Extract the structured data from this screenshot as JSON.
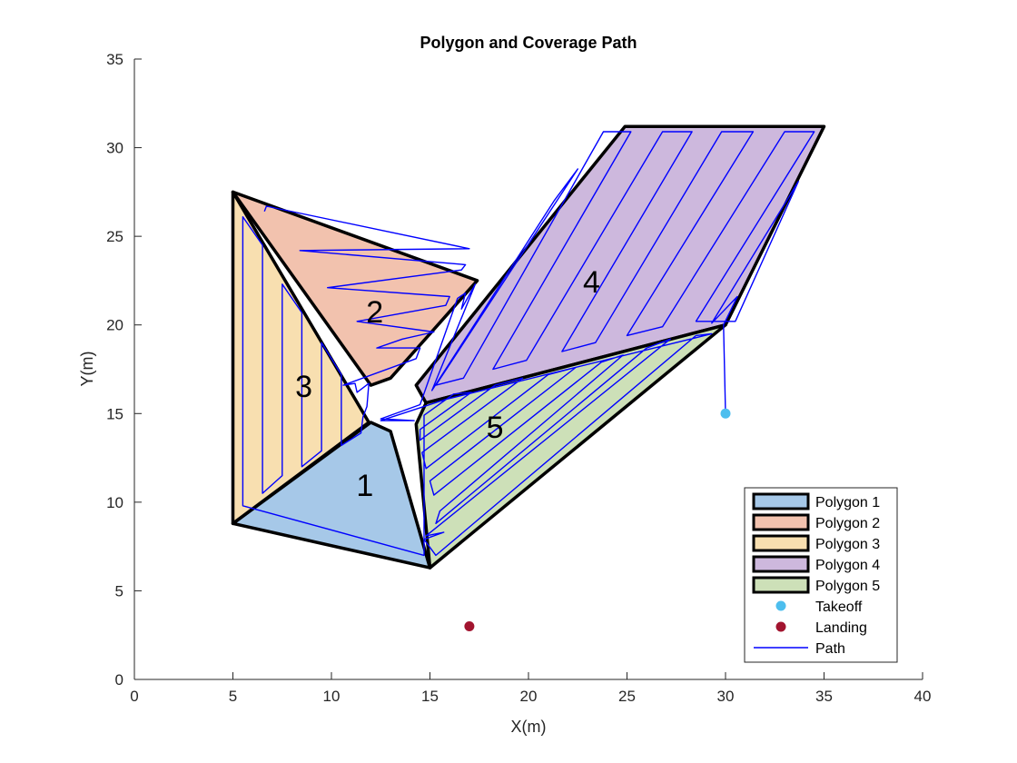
{
  "chart_data": {
    "type": "area",
    "title": "Polygon and Coverage Path",
    "xlabel": "X(m)",
    "ylabel": "Y(m)",
    "xlim": [
      0,
      40
    ],
    "ylim": [
      0,
      35
    ],
    "xticks": [
      0,
      5,
      10,
      15,
      20,
      25,
      30,
      35,
      40
    ],
    "yticks": [
      0,
      5,
      10,
      15,
      20,
      25,
      30,
      35
    ],
    "grid": false,
    "legend_position": "bottom-right",
    "polygons": [
      {
        "name": "Polygon 1",
        "label": "1",
        "color": "#a6c8e8",
        "label_at": [
          11.7,
          10.8
        ],
        "vertices": [
          [
            5,
            8.8
          ],
          [
            12,
            14.5
          ],
          [
            13,
            14
          ],
          [
            15,
            6.3
          ]
        ]
      },
      {
        "name": "Polygon 2",
        "label": "2",
        "color": "#f2c2ae",
        "label_at": [
          12.2,
          20.6
        ],
        "vertices": [
          [
            5,
            27.5
          ],
          [
            17.4,
            22.5
          ],
          [
            13,
            17
          ],
          [
            12,
            16.6
          ]
        ]
      },
      {
        "name": "Polygon 3",
        "label": "3",
        "color": "#f8dfb0",
        "label_at": [
          8.6,
          16.4
        ],
        "vertices": [
          [
            5,
            27.5
          ],
          [
            11.9,
            14.5
          ],
          [
            5,
            8.8
          ]
        ]
      },
      {
        "name": "Polygon 4",
        "label": "4",
        "color": "#cdb8dd",
        "label_at": [
          23.2,
          22.3
        ],
        "vertices": [
          [
            24.9,
            31.2
          ],
          [
            35,
            31.2
          ],
          [
            30,
            20
          ],
          [
            14.8,
            15.6
          ],
          [
            14.3,
            16.6
          ]
        ]
      },
      {
        "name": "Polygon 5",
        "label": "5",
        "color": "#cde0b8",
        "label_at": [
          18.3,
          14.1
        ],
        "vertices": [
          [
            14.8,
            15.6
          ],
          [
            30,
            20
          ],
          [
            15,
            6.3
          ],
          [
            14.3,
            14.4
          ]
        ]
      }
    ],
    "takeoff": {
      "name": "Takeoff",
      "x": 30,
      "y": 15,
      "color": "#4dbeee"
    },
    "landing": {
      "name": "Landing",
      "x": 17,
      "y": 3,
      "color": "#a2142f"
    },
    "path": {
      "name": "Path",
      "color": "#0000ff",
      "points": [
        [
          30,
          15
        ],
        [
          29.9,
          20
        ],
        [
          30.6,
          21.6
        ],
        [
          29.3,
          20.1
        ],
        [
          33.7,
          28.1
        ],
        [
          30.5,
          20.2
        ],
        [
          28.5,
          20.2
        ],
        [
          34.5,
          30.9
        ],
        [
          33,
          30.9
        ],
        [
          26.8,
          19.9
        ],
        [
          25,
          19.4
        ],
        [
          31.4,
          30.9
        ],
        [
          29.8,
          30.9
        ],
        [
          23.4,
          19
        ],
        [
          21.7,
          18.5
        ],
        [
          28.3,
          30.9
        ],
        [
          26.8,
          30.9
        ],
        [
          19.9,
          18
        ],
        [
          18.2,
          17.5
        ],
        [
          25.2,
          30.9
        ],
        [
          23.8,
          30.9
        ],
        [
          16.7,
          17
        ],
        [
          15.3,
          16.6
        ],
        [
          22.5,
          28.8
        ],
        [
          21.3,
          27
        ],
        [
          15.1,
          16.3
        ],
        [
          17.3,
          22.3
        ],
        [
          16.6,
          20.9
        ],
        [
          16.8,
          21.8
        ],
        [
          16.4,
          21.5
        ],
        [
          14.5,
          15.5
        ],
        [
          12.5,
          14.7
        ],
        [
          14.2,
          14.6
        ],
        [
          12.5,
          14.6
        ],
        [
          15.8,
          15.8
        ],
        [
          29.3,
          19.5
        ],
        [
          28.5,
          19.4
        ],
        [
          15.3,
          7
        ],
        [
          14.7,
          7.9
        ],
        [
          15.7,
          8.3
        ],
        [
          14.8,
          8.1
        ],
        [
          27.2,
          19.2
        ],
        [
          26,
          18.7
        ],
        [
          15.3,
          8.8
        ],
        [
          15.5,
          9.5
        ],
        [
          24.8,
          18.3
        ],
        [
          23.7,
          17.9
        ],
        [
          15.2,
          10.4
        ],
        [
          15,
          11.2
        ],
        [
          22.4,
          17.6
        ],
        [
          21,
          17.2
        ],
        [
          14.8,
          11.9
        ],
        [
          14.6,
          12.8
        ],
        [
          19.7,
          17
        ],
        [
          18.3,
          16.6
        ],
        [
          14.5,
          13.5
        ],
        [
          14.5,
          14.1
        ],
        [
          17.1,
          16.2
        ],
        [
          16.2,
          16.1
        ],
        [
          14.7,
          14.9
        ],
        [
          14.7,
          7
        ],
        [
          5.5,
          9.8
        ],
        [
          5.5,
          26.1
        ],
        [
          6.5,
          24.5
        ],
        [
          6.5,
          10.5
        ],
        [
          7.5,
          11.5
        ],
        [
          7.5,
          22.3
        ],
        [
          8.5,
          20.7
        ],
        [
          8.5,
          12
        ],
        [
          9.5,
          12.9
        ],
        [
          9.5,
          19
        ],
        [
          10.5,
          17.2
        ],
        [
          10.5,
          13.2
        ],
        [
          11.5,
          13.9
        ],
        [
          11.6,
          14.8
        ],
        [
          11.8,
          15.4
        ],
        [
          11.9,
          16.7
        ],
        [
          11.3,
          16.2
        ],
        [
          11.2,
          16.7
        ],
        [
          10.6,
          16.6
        ],
        [
          14.3,
          18.1
        ],
        [
          14.5,
          18.7
        ],
        [
          12.3,
          18.7
        ],
        [
          13.6,
          19.2
        ],
        [
          15.2,
          19.6
        ],
        [
          11.3,
          20.2
        ],
        [
          15.8,
          21.1
        ],
        [
          16,
          21.6
        ],
        [
          9.8,
          22.1
        ],
        [
          16.6,
          23.1
        ],
        [
          16.8,
          23.4
        ],
        [
          8.4,
          24.2
        ],
        [
          17,
          24.3
        ],
        [
          6.7,
          26.7
        ],
        [
          6.6,
          26.4
        ]
      ]
    }
  }
}
